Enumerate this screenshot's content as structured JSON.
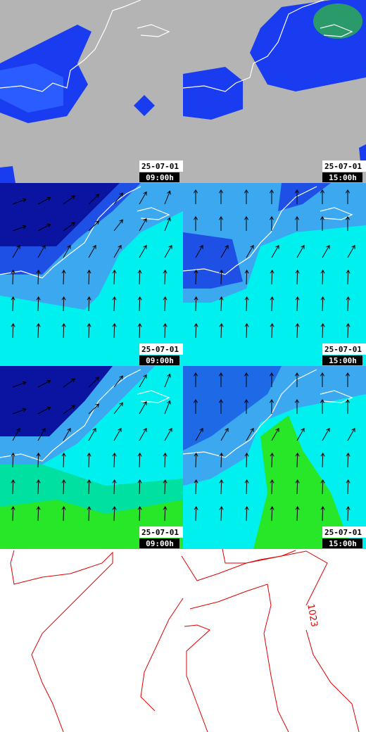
{
  "panels": [
    {
      "date": "25-07-01",
      "time": "09:00h"
    },
    {
      "date": "25-07-01",
      "time": "15:00h"
    },
    {
      "date": "25-07-01",
      "time": "09:00h"
    },
    {
      "date": "25-07-01",
      "time": "15:00h"
    },
    {
      "date": "25-07-01",
      "time": "09:00h"
    },
    {
      "date": "25-07-01",
      "time": "15:00h"
    }
  ],
  "isobar_label": "1023"
}
